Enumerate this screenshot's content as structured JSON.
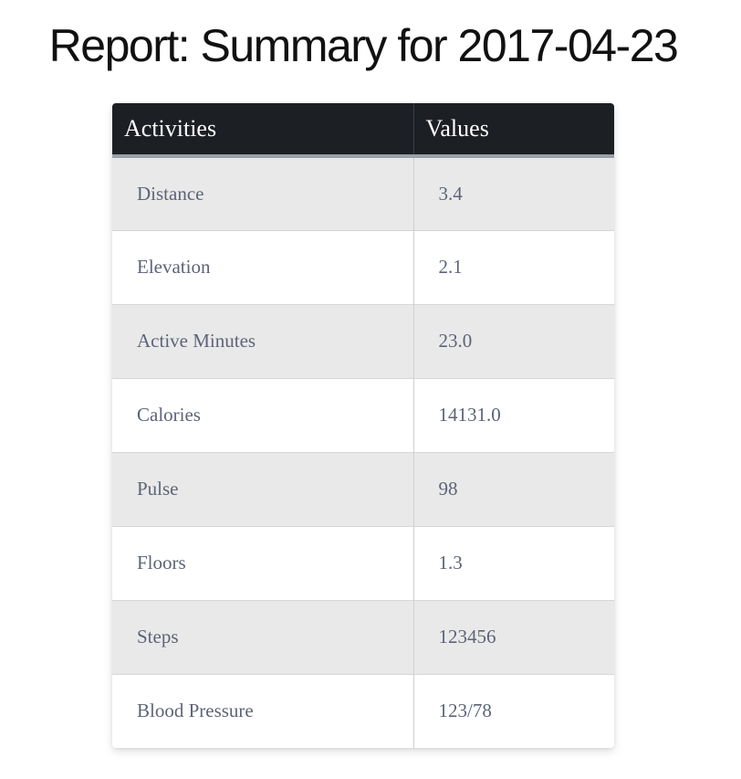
{
  "page": {
    "title": "Report: Summary for 2017-04-23"
  },
  "table": {
    "headers": {
      "activities": "Activities",
      "values": "Values"
    },
    "rows": [
      {
        "activity": "Distance",
        "value": "3.4"
      },
      {
        "activity": "Elevation",
        "value": "2.1"
      },
      {
        "activity": "Active Minutes",
        "value": "23.0"
      },
      {
        "activity": "Calories",
        "value": "14131.0"
      },
      {
        "activity": "Pulse",
        "value": "98"
      },
      {
        "activity": "Floors",
        "value": "1.3"
      },
      {
        "activity": "Steps",
        "value": "123456"
      },
      {
        "activity": "Blood Pressure",
        "value": "123/78"
      }
    ]
  },
  "colors": {
    "header_bg": "#1c1f24",
    "striped_row_bg": "#e9e9e9",
    "cell_text": "#5d6478"
  }
}
